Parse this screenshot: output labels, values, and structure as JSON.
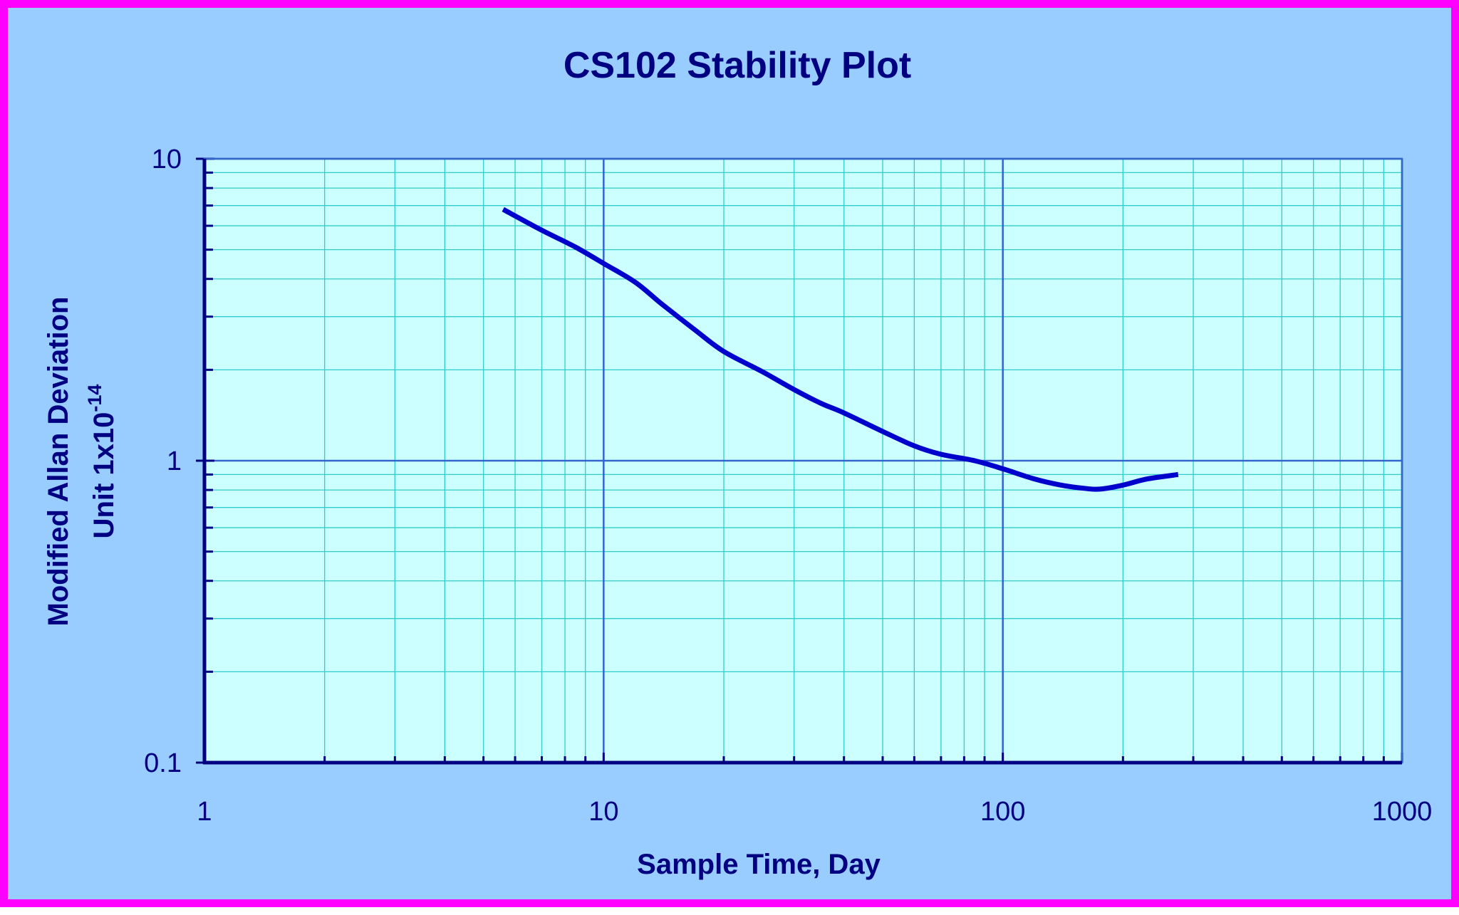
{
  "chart_data": {
    "type": "line",
    "title": "CS102 Stability Plot",
    "xlabel": "Sample Time, Day",
    "ylabel": [
      "Modified Allan Deviation",
      "Unit 1x10",
      "-14"
    ],
    "x_scale": "log",
    "y_scale": "log",
    "xlim": [
      1,
      1000
    ],
    "ylim": [
      0.1,
      10
    ],
    "x_ticks": [
      "1",
      "10",
      "100",
      "1000"
    ],
    "y_ticks": [
      "0.1",
      "1",
      "10"
    ],
    "grid": true,
    "legend": "none",
    "series": [
      {
        "x": [
          5.6,
          7,
          8.5,
          10,
          12,
          14,
          17,
          20,
          25,
          30,
          35,
          40,
          50,
          60,
          70,
          85,
          100,
          120,
          140,
          160,
          175,
          200,
          230,
          275
        ],
        "y": [
          6.8,
          5.8,
          5.1,
          4.5,
          3.9,
          3.3,
          2.7,
          2.3,
          1.97,
          1.72,
          1.55,
          1.44,
          1.25,
          1.12,
          1.05,
          1.0,
          0.94,
          0.87,
          0.83,
          0.81,
          0.805,
          0.83,
          0.87,
          0.9
        ]
      }
    ],
    "colors": {
      "page_background": "#99ccff",
      "border": "#ff00ff",
      "plot_background": "#ccffff",
      "major_grid": "#3366cc",
      "minor_grid": "#33cccc",
      "axis": "#000080",
      "line": "#0000cc",
      "text": "#000080"
    }
  }
}
